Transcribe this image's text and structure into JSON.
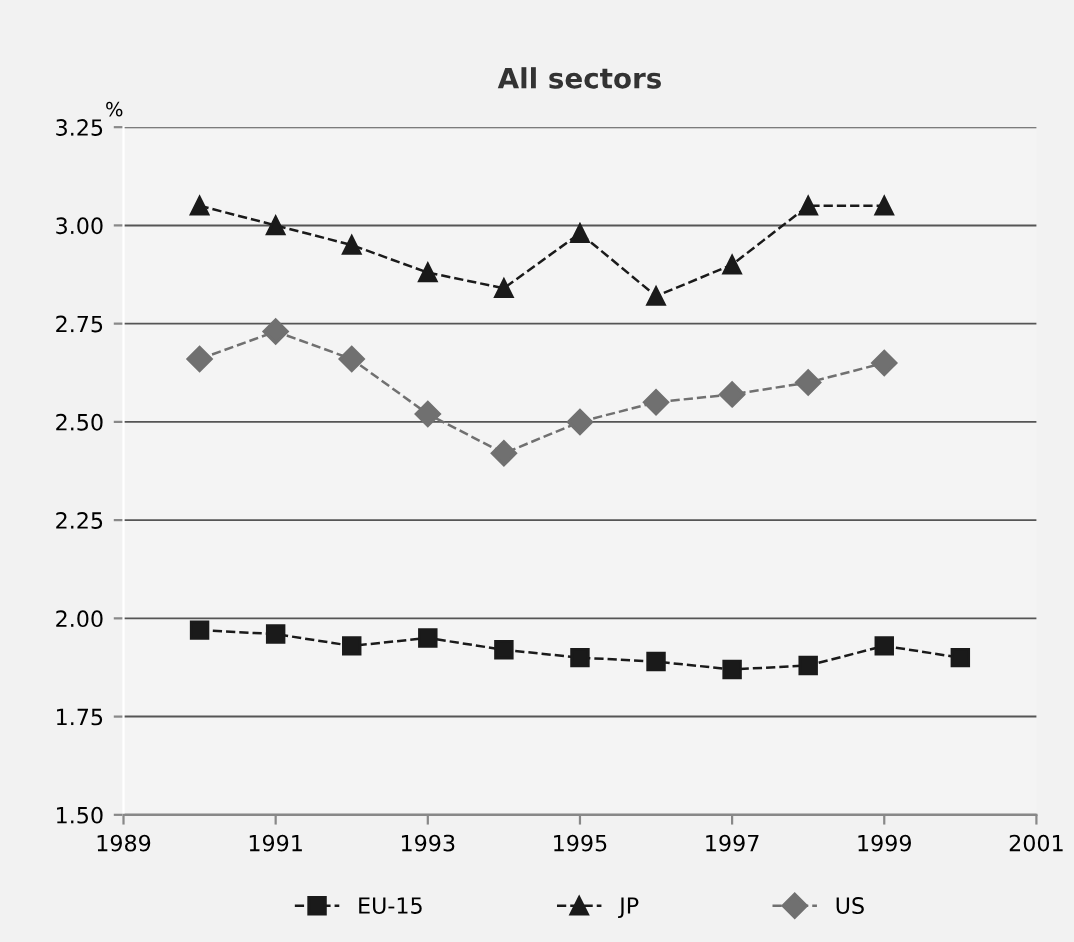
{
  "chart_data": {
    "type": "line",
    "title": "All sectors",
    "ylabel": "%",
    "x": [
      1990,
      1991,
      1992,
      1993,
      1994,
      1995,
      1996,
      1997,
      1998,
      1999,
      2000
    ],
    "series": [
      {
        "name": "EU-15",
        "color": "#1a1a1a",
        "marker": "square",
        "values": [
          1.97,
          1.96,
          1.93,
          1.95,
          1.92,
          1.9,
          1.89,
          1.87,
          1.88,
          1.93,
          1.9
        ]
      },
      {
        "name": "JP",
        "color": "#1a1a1a",
        "marker": "triangle",
        "values": [
          3.05,
          3.0,
          2.95,
          2.88,
          2.84,
          2.98,
          2.82,
          2.9,
          3.05,
          3.05,
          null
        ]
      },
      {
        "name": "US",
        "color": "#707070",
        "marker": "diamond",
        "values": [
          2.66,
          2.73,
          2.66,
          2.52,
          2.42,
          2.5,
          2.55,
          2.57,
          2.6,
          2.65,
          null
        ]
      }
    ],
    "xlim": [
      1989,
      2001
    ],
    "xticks": [
      1989,
      1991,
      1993,
      1995,
      1997,
      1999,
      2001
    ],
    "ylim": [
      1.5,
      3.25
    ],
    "yticks": [
      {
        "value": 1.5,
        "label": "1.50"
      },
      {
        "value": 1.75,
        "label": "1.75"
      },
      {
        "value": 2.0,
        "label": "2.00"
      },
      {
        "value": 2.25,
        "label": "2.25"
      },
      {
        "value": 2.5,
        "label": "2.50"
      },
      {
        "value": 2.75,
        "label": "2.75"
      },
      {
        "value": 3.0,
        "label": "3.00"
      },
      {
        "value": 3.25,
        "label": "3.25"
      }
    ],
    "grid": "y",
    "legend": "bottom",
    "line_style": "dashed"
  }
}
